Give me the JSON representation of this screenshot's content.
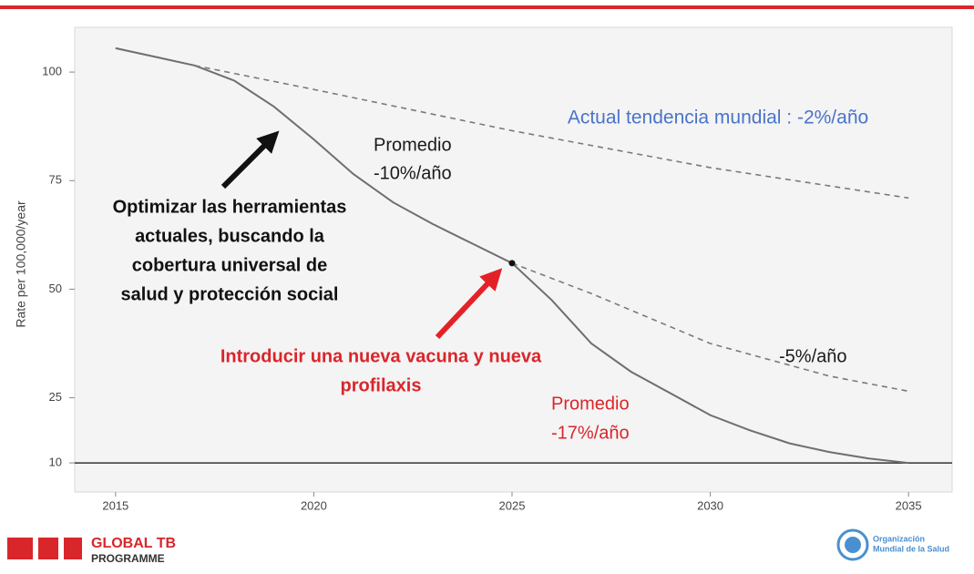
{
  "chart_data": {
    "type": "line",
    "y_label": "Rate per 100,000/year",
    "xlim": [
      2013.97,
      2036.1
    ],
    "ylim": [
      3.3,
      110.3
    ],
    "xticks": [
      2015,
      2020,
      2025,
      2030,
      2035
    ],
    "yticks": [
      10,
      25,
      50,
      75,
      100
    ],
    "hline": 10,
    "series": [
      {
        "color": "#6e6e6e",
        "dashed": false,
        "x": [
          2015,
          2016,
          2017,
          2018,
          2019,
          2020,
          2021,
          2022,
          2023,
          2024,
          2025,
          2026,
          2027,
          2028,
          2029,
          2030,
          2031,
          2032,
          2033,
          2034,
          2035
        ],
        "values": [
          105.5,
          103.5,
          101.5,
          98,
          92,
          84.5,
          76.5,
          70,
          65,
          60.5,
          56,
          47.5,
          37.5,
          31,
          26,
          21,
          17.5,
          14.5,
          12.5,
          11,
          10
        ]
      },
      {
        "color": "#7a7a7a",
        "dashed": true,
        "x": [
          2017,
          2020,
          2025,
          2030,
          2035
        ],
        "values": [
          101.5,
          96,
          86.5,
          78,
          71
        ]
      },
      {
        "color": "#7a7a7a",
        "dashed": true,
        "x": [
          2025,
          2027,
          2030,
          2033,
          2035
        ],
        "values": [
          56,
          49,
          37.5,
          30,
          26.5
        ]
      }
    ],
    "point": {
      "x": 2025,
      "value": 56
    },
    "annotations": [
      {
        "lines": [
          "Actual tendencia mundial : -2%/año"
        ],
        "color": "#4a74c9",
        "bold": false
      },
      {
        "lines": [
          "Promedio",
          "-10%/año"
        ],
        "color": "#1a1a1a",
        "bold": false
      },
      {
        "lines": [
          "Optimizar las herramientas",
          "actuales, buscando  la",
          "cobertura universal de",
          "salud y protección social"
        ],
        "color": "#111111",
        "bold": true
      },
      {
        "lines": [
          "Introducir una nueva vacuna y nueva",
          "profilaxis"
        ],
        "color": "#d9262b",
        "bold": true
      },
      {
        "lines": [
          "-5%/año"
        ],
        "color": "#1a1a1a",
        "bold": false
      },
      {
        "lines": [
          "Promedio",
          "-17%/año"
        ],
        "color": "#d9262b",
        "bold": false
      }
    ]
  },
  "footer": {
    "program_line1": "GLOBAL TB",
    "program_line2": "PROGRAMME",
    "who_line1": "Organización",
    "who_line2": "Mundial de la Salud"
  }
}
